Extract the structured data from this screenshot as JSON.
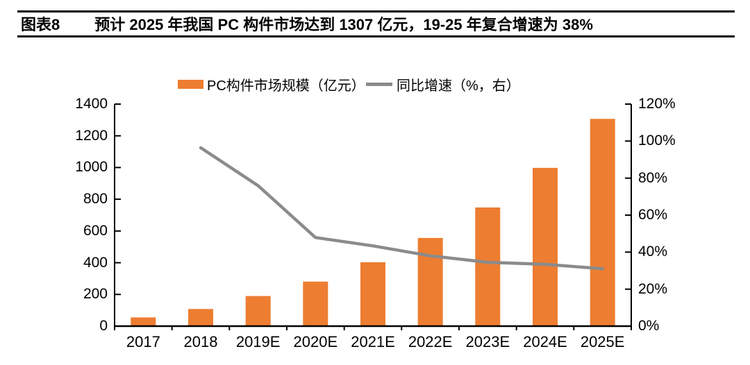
{
  "header": {
    "label": "图表8",
    "title": "预计 2025 年我国 PC 构件市场达到 1307 亿元，19-25 年复合增速为 38%"
  },
  "chart_data": {
    "type": "bar+line",
    "title": "预计 2025 年我国 PC 构件市场达到 1307 亿元，19-25 年复合增速为 38%",
    "categories": [
      "2017",
      "2018",
      "2019E",
      "2020E",
      "2021E",
      "2022E",
      "2023E",
      "2024E",
      "2025E"
    ],
    "series": [
      {
        "name": "PC构件市场规模（亿元）",
        "type": "bar",
        "axis": "left",
        "color": "#ED7D31",
        "values": [
          55,
          108,
          190,
          281,
          403,
          556,
          748,
          998,
          1307
        ]
      },
      {
        "name": "同比增速（%，右）",
        "type": "line",
        "axis": "right",
        "color": "#8B8B8B",
        "values": [
          null,
          96.4,
          75.9,
          47.9,
          43.4,
          38.0,
          34.5,
          33.4,
          31.0
        ]
      }
    ],
    "left_axis": {
      "min": 0,
      "max": 1400,
      "step": 200,
      "tick_labels": [
        "0",
        "200",
        "400",
        "600",
        "800",
        "1000",
        "1200",
        "1400"
      ]
    },
    "right_axis": {
      "min": 0,
      "max": 120,
      "step": 20,
      "tick_labels": [
        "0%",
        "20%",
        "40%",
        "60%",
        "80%",
        "100%",
        "120%"
      ]
    },
    "grid": false,
    "legend_position": "top-center"
  },
  "colors": {
    "bar": "#ED7D31",
    "line": "#8B8B8B",
    "axis": "#000000",
    "text": "#000000",
    "background": "#FFFFFF"
  }
}
